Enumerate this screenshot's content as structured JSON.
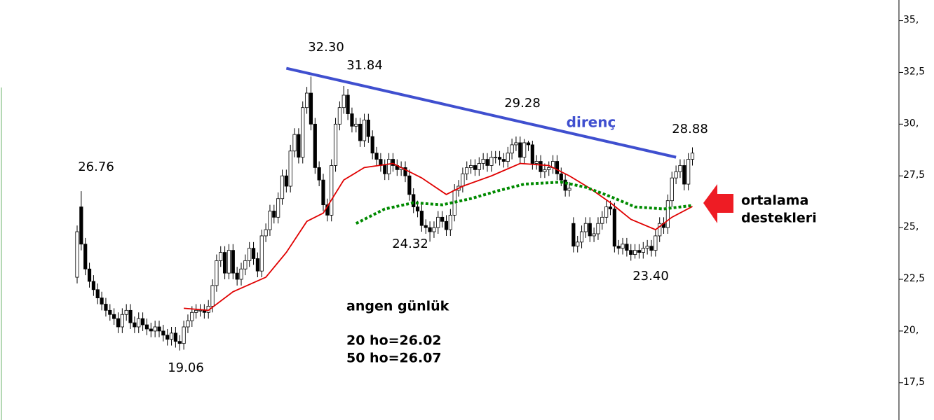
{
  "chart_data": {
    "type": "candlestick",
    "title": "angen günlük",
    "ma_labels": [
      "20 ho=26.02",
      "50 ho=26.07"
    ],
    "open": [
      22.6,
      26.0,
      24.2,
      23.0,
      22.4,
      22.0,
      21.6,
      21.3,
      21.0,
      20.8,
      20.6,
      20.2,
      20.8,
      21.0,
      20.4,
      20.2,
      20.6,
      20.3,
      20.1,
      20.0,
      20.2,
      20.0,
      19.8,
      19.6,
      19.9,
      19.5,
      19.4,
      20.2,
      20.5,
      20.9,
      21.0,
      21.0,
      20.9,
      21.2,
      22.2,
      23.4,
      23.8,
      22.8,
      23.9,
      22.8,
      22.5,
      23.0,
      23.4,
      24.0,
      23.5,
      22.9,
      24.6,
      24.9,
      25.8,
      25.5,
      26.4,
      27.5,
      27.0,
      28.7,
      29.5,
      28.4,
      30.8,
      31.5,
      30.0,
      27.9,
      27.3,
      26.1,
      25.6,
      28.0,
      30.0,
      30.8,
      31.4,
      30.5,
      29.9,
      30.0,
      29.2,
      30.2,
      29.4,
      28.6,
      28.3,
      28.0,
      27.6,
      28.3,
      28.0,
      27.8,
      27.9,
      27.5,
      26.6,
      26.0,
      25.8,
      25.1,
      25.0,
      24.8,
      25.0,
      25.5,
      25.3,
      24.9,
      25.6,
      26.8,
      27.0,
      27.6,
      27.9,
      28.0,
      27.8,
      28.1,
      28.3,
      28.0,
      28.4,
      28.4,
      28.3,
      28.2,
      28.6,
      29.0,
      29.1,
      28.4,
      29.1,
      29.0,
      28.1,
      28.2,
      27.7,
      27.8,
      27.9,
      28.2,
      27.6,
      27.3,
      26.8,
      25.2,
      24.1,
      24.3,
      24.8,
      25.2,
      24.6,
      24.7,
      25.2,
      25.5,
      26.0,
      25.9,
      24.1,
      24.0,
      24.2,
      23.9,
      23.7,
      23.9,
      23.8,
      24.0,
      24.1,
      23.9,
      24.6,
      25.2,
      25.0,
      26.3,
      27.4,
      27.7,
      28.0,
      27.1,
      28.3
    ],
    "high": [
      25.1,
      26.76,
      24.5,
      23.3,
      22.7,
      22.3,
      21.9,
      21.6,
      21.3,
      21.1,
      20.9,
      21.1,
      21.3,
      21.3,
      20.7,
      20.9,
      20.9,
      20.6,
      20.4,
      20.5,
      20.5,
      20.3,
      20.1,
      20.2,
      20.2,
      19.8,
      20.5,
      20.8,
      21.2,
      21.3,
      21.3,
      21.3,
      21.5,
      22.5,
      23.7,
      24.1,
      24.1,
      24.2,
      24.2,
      23.1,
      23.3,
      23.7,
      24.3,
      24.3,
      23.8,
      24.9,
      25.2,
      26.1,
      26.1,
      26.7,
      27.8,
      27.8,
      29.0,
      29.8,
      29.8,
      31.1,
      31.8,
      32.3,
      30.3,
      28.2,
      27.6,
      26.4,
      28.3,
      30.3,
      31.1,
      31.84,
      31.7,
      30.8,
      30.3,
      30.3,
      30.5,
      30.5,
      29.7,
      28.9,
      28.6,
      28.3,
      28.6,
      28.6,
      28.3,
      28.2,
      28.2,
      27.8,
      26.9,
      26.3,
      26.1,
      25.4,
      25.3,
      25.3,
      25.8,
      25.8,
      25.6,
      25.9,
      27.1,
      27.3,
      27.9,
      28.2,
      28.3,
      28.3,
      28.4,
      28.6,
      28.6,
      28.7,
      28.7,
      28.7,
      28.6,
      28.9,
      29.3,
      29.4,
      29.4,
      29.28,
      29.2,
      29.2,
      28.5,
      28.5,
      28.1,
      28.2,
      28.5,
      28.5,
      27.9,
      27.6,
      27.2,
      25.5,
      24.6,
      25.1,
      25.5,
      25.5,
      25.0,
      25.5,
      25.8,
      26.3,
      26.3,
      26.2,
      24.4,
      24.5,
      24.5,
      24.2,
      24.2,
      24.2,
      24.3,
      24.4,
      24.4,
      24.9,
      25.5,
      25.5,
      26.6,
      27.7,
      28.0,
      28.3,
      28.3,
      28.6,
      28.88
    ],
    "low": [
      22.3,
      23.9,
      22.7,
      22.1,
      21.7,
      21.3,
      21.0,
      20.7,
      20.5,
      20.3,
      19.9,
      19.9,
      20.5,
      20.1,
      19.9,
      19.9,
      20.0,
      19.8,
      19.7,
      19.7,
      19.7,
      19.5,
      19.3,
      19.3,
      19.2,
      19.06,
      19.1,
      19.9,
      20.2,
      20.6,
      20.7,
      20.6,
      20.6,
      20.9,
      21.9,
      23.1,
      22.5,
      22.5,
      22.5,
      22.2,
      22.2,
      22.7,
      23.1,
      23.2,
      22.6,
      22.6,
      24.3,
      24.6,
      25.2,
      25.2,
      26.1,
      26.7,
      26.7,
      28.4,
      28.1,
      28.1,
      30.5,
      29.7,
      27.6,
      27.0,
      25.8,
      25.3,
      25.3,
      27.7,
      29.7,
      30.5,
      30.2,
      29.6,
      29.6,
      28.9,
      28.9,
      29.1,
      28.3,
      28.0,
      27.7,
      27.3,
      27.3,
      27.7,
      27.5,
      27.5,
      27.2,
      26.3,
      25.7,
      25.5,
      24.8,
      24.7,
      24.32,
      24.5,
      24.7,
      25.0,
      24.6,
      24.6,
      25.3,
      26.5,
      26.7,
      27.3,
      27.6,
      27.5,
      27.5,
      27.8,
      27.7,
      27.7,
      28.1,
      28.0,
      27.9,
      27.9,
      28.3,
      28.7,
      28.1,
      28.1,
      28.7,
      27.8,
      27.8,
      27.4,
      27.4,
      27.5,
      27.6,
      27.3,
      27.0,
      26.5,
      26.5,
      23.8,
      23.8,
      24.0,
      24.5,
      24.3,
      24.3,
      24.4,
      24.9,
      25.2,
      25.6,
      23.8,
      23.7,
      23.7,
      23.6,
      23.4,
      23.5,
      23.5,
      23.5,
      23.7,
      23.6,
      23.6,
      24.3,
      24.7,
      24.7,
      26.0,
      27.1,
      27.4,
      26.8,
      26.8,
      28.0
    ],
    "close": [
      24.8,
      24.2,
      23.0,
      22.4,
      22.0,
      21.6,
      21.3,
      21.0,
      20.8,
      20.6,
      20.2,
      20.8,
      21.0,
      20.4,
      20.2,
      20.6,
      20.3,
      20.1,
      20.0,
      20.2,
      20.0,
      19.8,
      19.6,
      19.9,
      19.5,
      19.4,
      20.2,
      20.5,
      20.9,
      21.0,
      21.0,
      20.9,
      21.2,
      22.2,
      23.4,
      23.8,
      22.8,
      23.9,
      22.8,
      22.5,
      23.0,
      23.4,
      24.0,
      23.5,
      22.9,
      24.6,
      24.9,
      25.8,
      25.5,
      26.4,
      27.5,
      27.0,
      28.7,
      29.5,
      28.4,
      30.8,
      31.5,
      30.0,
      27.9,
      27.3,
      26.1,
      25.6,
      28.0,
      30.0,
      30.8,
      31.4,
      30.5,
      29.9,
      30.0,
      29.2,
      30.2,
      29.4,
      28.6,
      28.3,
      28.0,
      27.6,
      28.3,
      28.0,
      27.8,
      27.9,
      27.5,
      26.6,
      26.0,
      25.8,
      25.1,
      25.0,
      24.8,
      25.0,
      25.5,
      25.3,
      24.9,
      25.6,
      26.8,
      27.0,
      27.6,
      27.9,
      28.0,
      27.8,
      28.1,
      28.3,
      28.0,
      28.4,
      28.4,
      28.3,
      28.2,
      28.6,
      29.0,
      29.1,
      28.4,
      29.1,
      29.0,
      28.1,
      28.2,
      27.7,
      27.8,
      27.9,
      28.2,
      27.6,
      27.3,
      26.8,
      26.9,
      24.1,
      24.3,
      24.8,
      25.2,
      24.6,
      24.7,
      25.2,
      25.5,
      26.0,
      25.9,
      24.1,
      24.0,
      24.2,
      23.9,
      23.7,
      23.9,
      23.8,
      24.0,
      24.1,
      23.9,
      24.6,
      25.2,
      25.0,
      26.3,
      27.4,
      27.7,
      28.0,
      27.1,
      28.3,
      28.6
    ],
    "series": [
      {
        "color": "#e00000",
        "dash": false,
        "x": [
          26,
          32,
          38,
          46,
          51,
          56,
          60,
          65,
          70,
          77,
          84,
          90,
          94,
          101,
          108,
          115,
          120,
          125,
          130,
          135,
          141,
          145,
          150
        ],
        "values": [
          21.1,
          21.0,
          21.9,
          22.6,
          23.8,
          25.3,
          25.7,
          27.3,
          27.9,
          28.1,
          27.4,
          26.6,
          27.0,
          27.5,
          28.1,
          28.0,
          27.5,
          26.9,
          26.2,
          25.4,
          24.9,
          25.5,
          26.02
        ]
      },
      {
        "color": "#008a00",
        "dash": true,
        "x": [
          68,
          75,
          82,
          89,
          96,
          103,
          109,
          118,
          124,
          130,
          136,
          143,
          150
        ],
        "values": [
          25.2,
          25.9,
          26.2,
          26.1,
          26.4,
          26.8,
          27.1,
          27.2,
          26.95,
          26.5,
          26.0,
          25.9,
          26.07
        ]
      }
    ],
    "trendline": {
      "x": [
        51,
        146
      ],
      "values": [
        32.7,
        28.4
      ],
      "color": "#3f4fcf"
    },
    "annotations": [
      "26.76",
      "32.30",
      "31.84",
      "19.06",
      "24.32",
      "29.28",
      "23.40",
      "28.88",
      "direnç",
      "ortalama",
      "destekleri"
    ],
    "ylim": [
      15.7,
      36.0
    ],
    "yticks": [
      {
        "value": 35,
        "label": "35,"
      },
      {
        "value": 32.5,
        "label": "32,5"
      },
      {
        "value": 30,
        "label": "30,"
      },
      {
        "value": 27.5,
        "label": "27,5"
      },
      {
        "value": 25,
        "label": "25,"
      },
      {
        "value": 22.5,
        "label": "22,5"
      },
      {
        "value": 20,
        "label": "20,"
      },
      {
        "value": 17.5,
        "label": "17,5"
      }
    ],
    "up_color": "#ffffff",
    "down_color": "#000000"
  }
}
